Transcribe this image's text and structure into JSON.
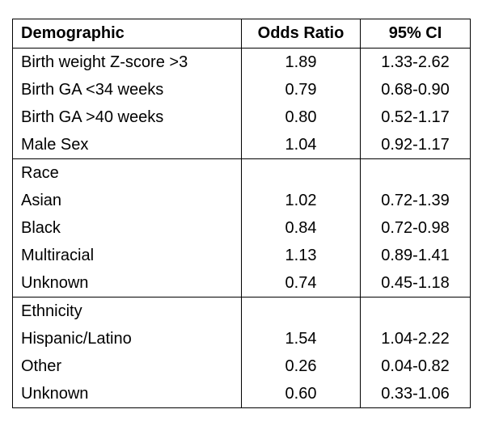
{
  "table": {
    "headers": [
      "Demographic",
      "Odds Ratio",
      "95% CI"
    ],
    "sections": [
      {
        "title": "",
        "rows": [
          {
            "label": "Birth weight Z-score >3",
            "or": "1.89",
            "ci": "1.33-2.62"
          },
          {
            "label": "Birth GA <34 weeks",
            "or": "0.79",
            "ci": "0.68-0.90"
          },
          {
            "label": "Birth GA >40 weeks",
            "or": "0.80",
            "ci": "0.52-1.17"
          },
          {
            "label": "Male Sex",
            "or": "1.04",
            "ci": "0.92-1.17"
          }
        ]
      },
      {
        "title": "Race",
        "rows": [
          {
            "label": "Asian",
            "or": "1.02",
            "ci": "0.72-1.39"
          },
          {
            "label": "Black",
            "or": "0.84",
            "ci": "0.72-0.98"
          },
          {
            "label": "Multiracial",
            "or": "1.13",
            "ci": "0.89-1.41"
          },
          {
            "label": "Unknown",
            "or": "0.74",
            "ci": "0.45-1.18"
          }
        ]
      },
      {
        "title": "Ethnicity",
        "rows": [
          {
            "label": "Hispanic/Latino",
            "or": "1.54",
            "ci": "1.04-2.22"
          },
          {
            "label": "Other",
            "or": "0.26",
            "ci": "0.04-0.82"
          },
          {
            "label": "Unknown",
            "or": "0.60",
            "ci": "0.33-1.06"
          }
        ]
      }
    ]
  }
}
